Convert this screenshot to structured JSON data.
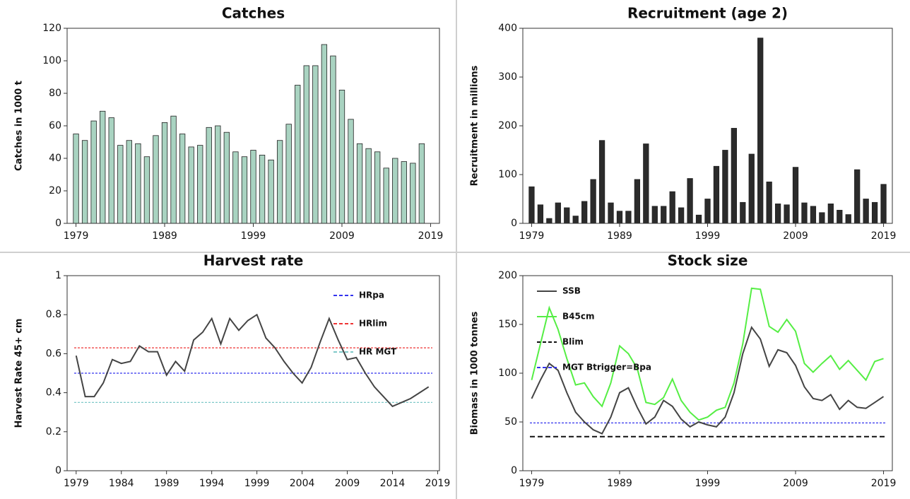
{
  "chart_data": [
    {
      "type": "bar",
      "title": "Catches",
      "y_label": "Catches in 1000 t",
      "x": [
        1979,
        1980,
        1981,
        1982,
        1983,
        1984,
        1985,
        1986,
        1987,
        1988,
        1989,
        1990,
        1991,
        1992,
        1993,
        1994,
        1995,
        1996,
        1997,
        1998,
        1999,
        2000,
        2001,
        2002,
        2003,
        2004,
        2005,
        2006,
        2007,
        2008,
        2009,
        2010,
        2011,
        2012,
        2013,
        2014,
        2015,
        2016,
        2017,
        2018
      ],
      "values": [
        55,
        51,
        63,
        69,
        65,
        48,
        51,
        49,
        41,
        54,
        62,
        66,
        55,
        47,
        48,
        59,
        60,
        56,
        44,
        41,
        45,
        42,
        39,
        51,
        61,
        85,
        97,
        97,
        110,
        103,
        82,
        64,
        49,
        46,
        44,
        34,
        40,
        38,
        37,
        49
      ],
      "color": "#a9d3c1",
      "xlim": [
        1978,
        2020
      ],
      "xticks": [
        1979,
        1989,
        1999,
        2009,
        2019
      ],
      "ylim": [
        0,
        120
      ],
      "yticks": [
        0,
        20,
        40,
        60,
        80,
        100,
        120
      ]
    },
    {
      "type": "bar",
      "title": "Recruitment (age 2)",
      "y_label": "Recruitment in millions",
      "x": [
        1979,
        1980,
        1981,
        1982,
        1983,
        1984,
        1985,
        1986,
        1987,
        1988,
        1989,
        1990,
        1991,
        1992,
        1993,
        1994,
        1995,
        1996,
        1997,
        1998,
        1999,
        2000,
        2001,
        2002,
        2003,
        2004,
        2005,
        2006,
        2007,
        2008,
        2009,
        2010,
        2011,
        2012,
        2013,
        2014,
        2015,
        2016,
        2017,
        2018,
        2019
      ],
      "values": [
        75,
        38,
        10,
        42,
        32,
        15,
        45,
        90,
        170,
        42,
        25,
        25,
        90,
        163,
        35,
        35,
        65,
        32,
        92,
        17,
        50,
        117,
        150,
        195,
        43,
        142,
        380,
        85,
        40,
        38,
        115,
        42,
        35,
        22,
        40,
        27,
        18,
        110,
        50,
        43,
        80
      ],
      "color": "#2b2b2b",
      "xlim": [
        1978,
        2020
      ],
      "xticks": [
        1979,
        1989,
        1999,
        2009,
        2019
      ],
      "ylim": [
        0,
        400
      ],
      "yticks": [
        0,
        100,
        200,
        300,
        400
      ]
    },
    {
      "type": "line",
      "title": "Harvest rate",
      "y_label": "Harvest Rate 45+ cm",
      "x": [
        1979,
        1980,
        1981,
        1982,
        1983,
        1984,
        1985,
        1986,
        1987,
        1988,
        1989,
        1990,
        1991,
        1992,
        1993,
        1994,
        1995,
        1996,
        1997,
        1998,
        1999,
        2000,
        2001,
        2002,
        2003,
        2004,
        2005,
        2006,
        2007,
        2008,
        2009,
        2010,
        2011,
        2012,
        2013,
        2014,
        2015,
        2016,
        2017,
        2018
      ],
      "series": [
        {
          "color": "#444444",
          "values": [
            0.59,
            0.38,
            0.38,
            0.45,
            0.57,
            0.55,
            0.56,
            0.64,
            0.61,
            0.61,
            0.49,
            0.56,
            0.51,
            0.67,
            0.71,
            0.78,
            0.65,
            0.78,
            0.72,
            0.77,
            0.8,
            0.68,
            0.63,
            0.56,
            0.5,
            0.45,
            0.53,
            0.66,
            0.78,
            0.67,
            0.57,
            0.58,
            0.5,
            0.43,
            0.38,
            0.33,
            0.35,
            0.37,
            0.4,
            0.43
          ]
        }
      ],
      "hlines": [
        {
          "name": "HRpa",
          "value": 0.5,
          "color": "#3333ee"
        },
        {
          "name": "HRlim",
          "value": 0.63,
          "color": "#ee3333"
        },
        {
          "name": "HR MGT",
          "value": 0.35,
          "color": "#7fc9c9"
        }
      ],
      "legend": "upper right",
      "xlim": [
        1978,
        2019.2
      ],
      "xticks": [
        1979,
        1984,
        1989,
        1994,
        1999,
        2004,
        2009,
        2014,
        2019
      ],
      "ylim": [
        0,
        1
      ],
      "yticks": [
        0,
        0.2,
        0.4,
        0.6,
        0.8,
        1
      ]
    },
    {
      "type": "line",
      "title": "Stock size",
      "y_label": "Biomass in 1000 tonnes",
      "x": [
        1979,
        1980,
        1981,
        1982,
        1983,
        1984,
        1985,
        1986,
        1987,
        1988,
        1989,
        1990,
        1991,
        1992,
        1993,
        1994,
        1995,
        1996,
        1997,
        1998,
        1999,
        2000,
        2001,
        2002,
        2003,
        2004,
        2005,
        2006,
        2007,
        2008,
        2009,
        2010,
        2011,
        2012,
        2013,
        2014,
        2015,
        2016,
        2017,
        2018,
        2019
      ],
      "series": [
        {
          "name": "SSB",
          "color": "#444444",
          "values": [
            74,
            93,
            110,
            103,
            80,
            60,
            50,
            42,
            38,
            55,
            80,
            85,
            65,
            48,
            55,
            72,
            66,
            53,
            45,
            50,
            47,
            45,
            55,
            80,
            120,
            147,
            135,
            107,
            124,
            121,
            108,
            86,
            74,
            72,
            78,
            63,
            72,
            65,
            64,
            70,
            76
          ]
        },
        {
          "name": "B45cm",
          "color": "#55ee44",
          "values": [
            93,
            130,
            167,
            145,
            115,
            88,
            90,
            76,
            66,
            90,
            128,
            120,
            105,
            70,
            68,
            75,
            94,
            72,
            60,
            52,
            55,
            62,
            65,
            90,
            130,
            187,
            186,
            148,
            142,
            155,
            143,
            110,
            101,
            110,
            118,
            104,
            113,
            103,
            93,
            112,
            115
          ]
        }
      ],
      "hlines": [
        {
          "name": "Blim",
          "value": 35,
          "color": "#111111"
        },
        {
          "name": "MGT Btrigger=Bpa",
          "value": 49,
          "color": "#3333ee"
        }
      ],
      "legend": "upper left",
      "xlim": [
        1978,
        2020
      ],
      "xticks": [
        1979,
        1989,
        1999,
        2009,
        2019
      ],
      "ylim": [
        0,
        200
      ],
      "yticks": [
        0,
        50,
        100,
        150,
        200
      ]
    }
  ]
}
